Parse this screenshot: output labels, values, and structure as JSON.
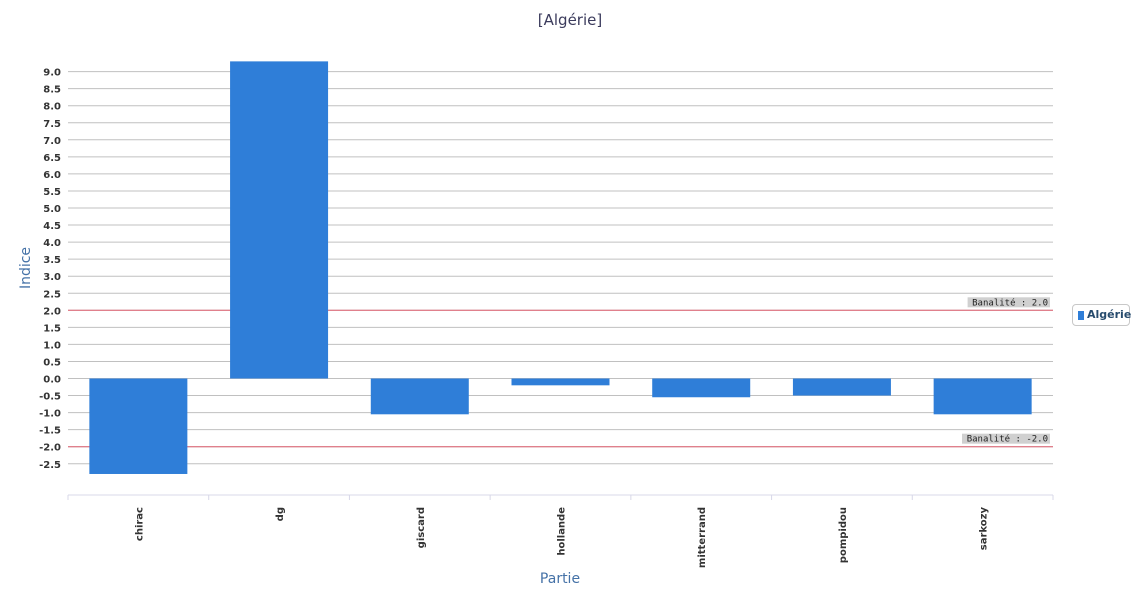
{
  "chart_data": {
    "type": "bar",
    "title": "[Algérie]",
    "xlabel": "Partie",
    "ylabel": "Indice",
    "categories": [
      "chirac",
      "dg",
      "giscard",
      "hollande",
      "mitterrand",
      "pompidou",
      "sarkozy"
    ],
    "series": [
      {
        "name": "Algérie",
        "values": [
          -2.8,
          9.3,
          -1.05,
          -0.2,
          -0.55,
          -0.5,
          -1.05
        ]
      }
    ],
    "ylim": [
      -3.5,
      9.0
    ],
    "yticks": [
      "9.0",
      "8.5",
      "8.0",
      "7.5",
      "7.0",
      "6.5",
      "6.0",
      "5.5",
      "5.0",
      "4.5",
      "4.0",
      "3.5",
      "3.0",
      "2.5",
      "2.0",
      "1.5",
      "1.0",
      "0.5",
      "0.0",
      "-0.5",
      "-1.0",
      "-1.5",
      "-2.0",
      "-2.5"
    ],
    "plot_lines": [
      {
        "value": 2.0,
        "label": "Banalité : 2.0"
      },
      {
        "value": -2.0,
        "label": "Banalité : -2.0"
      }
    ],
    "grid": true,
    "legend_position": "right",
    "colors": {
      "bar": "#2f7ed8",
      "plot_line": "#e06070",
      "grid": "#c0c0c0"
    }
  }
}
